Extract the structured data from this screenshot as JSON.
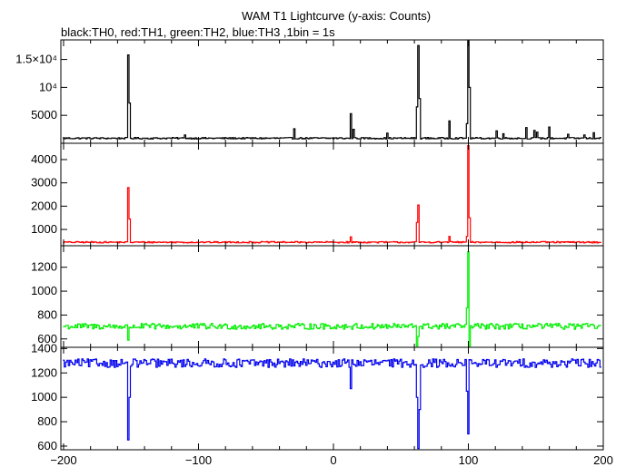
{
  "title": "WAM T1 Lightcurve (y-axis: Counts)",
  "subtitle": "black:TH0, red:TH1, green:TH2, blue:TH3 ,1bin = 1s",
  "chart_data": [
    {
      "type": "line",
      "series": [
        {
          "name": "TH0",
          "color": "#000000"
        }
      ],
      "xlim": [
        -202,
        200
      ],
      "ylim": [
        0,
        18500
      ],
      "yticks": [
        5000,
        10000,
        15000
      ],
      "ytick_labels": [
        "5000",
        "10⁴",
        "1.5×10⁴"
      ],
      "baseline": 900,
      "noise": 140,
      "peaks": [
        {
          "x": -152,
          "y": 15800,
          "w": 0.6
        },
        {
          "x": -151,
          "y": 7200,
          "w": 0.4
        },
        {
          "x": -150.5,
          "y": 3600,
          "w": 0.3
        },
        {
          "x": -110,
          "y": 1500,
          "w": 0.3
        },
        {
          "x": -29,
          "y": 2600,
          "w": 0.4
        },
        {
          "x": 13,
          "y": 5300,
          "w": 0.6
        },
        {
          "x": 15,
          "y": 2500,
          "w": 0.4
        },
        {
          "x": 40,
          "y": 1800,
          "w": 0.3
        },
        {
          "x": 62,
          "y": 6500,
          "w": 0.7
        },
        {
          "x": 63,
          "y": 17500,
          "w": 0.6
        },
        {
          "x": 64,
          "y": 8000,
          "w": 0.4
        },
        {
          "x": 86,
          "y": 4000,
          "w": 0.4
        },
        {
          "x": 99,
          "y": 3500,
          "w": 0.5
        },
        {
          "x": 100,
          "y": 18300,
          "w": 0.6
        },
        {
          "x": 101,
          "y": 10000,
          "w": 0.5
        },
        {
          "x": 121,
          "y": 2200,
          "w": 0.3
        },
        {
          "x": 126,
          "y": 1700,
          "w": 0.3
        },
        {
          "x": 143,
          "y": 2800,
          "w": 0.3
        },
        {
          "x": 149,
          "y": 2300,
          "w": 0.3
        },
        {
          "x": 151,
          "y": 2000,
          "w": 0.3
        },
        {
          "x": 160,
          "y": 2900,
          "w": 0.4
        },
        {
          "x": 174,
          "y": 1600,
          "w": 0.3
        },
        {
          "x": 186,
          "y": 1500,
          "w": 0.3
        },
        {
          "x": 193,
          "y": 1900,
          "w": 0.3
        }
      ]
    },
    {
      "type": "line",
      "series": [
        {
          "name": "TH1",
          "color": "#ff0000"
        }
      ],
      "xlim": [
        -202,
        200
      ],
      "ylim": [
        300,
        4700
      ],
      "yticks": [
        1000,
        2000,
        3000,
        4000
      ],
      "ytick_labels": [
        "1000",
        "2000",
        "3000",
        "4000"
      ],
      "baseline": 450,
      "noise": 30,
      "peaks": [
        {
          "x": -152,
          "y": 2800,
          "w": 0.6
        },
        {
          "x": -151,
          "y": 1450,
          "w": 0.4
        },
        {
          "x": 13,
          "y": 680,
          "w": 0.5
        },
        {
          "x": 62,
          "y": 1300,
          "w": 0.6
        },
        {
          "x": 63,
          "y": 2050,
          "w": 0.5
        },
        {
          "x": 86,
          "y": 700,
          "w": 0.4
        },
        {
          "x": 99,
          "y": 700,
          "w": 0.5
        },
        {
          "x": 100,
          "y": 4600,
          "w": 0.5
        },
        {
          "x": 101,
          "y": 1500,
          "w": 0.4
        }
      ]
    },
    {
      "type": "line",
      "series": [
        {
          "name": "TH2",
          "color": "#00ee00"
        }
      ],
      "xlim": [
        -202,
        200
      ],
      "ylim": [
        530,
        1380
      ],
      "yticks": [
        600,
        800,
        1000,
        1200
      ],
      "ytick_labels": [
        "600",
        "800",
        "1000",
        "1200"
      ],
      "baseline": 705,
      "noise": 25,
      "peaks": [
        {
          "x": -152,
          "y": 590,
          "w": 0.6
        },
        {
          "x": 62,
          "y": 540,
          "w": 0.6
        },
        {
          "x": 63,
          "y": 620,
          "w": 0.5
        },
        {
          "x": 100,
          "y": 1330,
          "w": 0.5
        },
        {
          "x": 101,
          "y": 540,
          "w": 0.4
        },
        {
          "x": 99,
          "y": 860,
          "w": 0.4
        }
      ]
    },
    {
      "type": "line",
      "series": [
        {
          "name": "TH3",
          "color": "#0000ee"
        }
      ],
      "xlim": [
        -202,
        200
      ],
      "xticks": [
        -200,
        -100,
        0,
        100,
        200
      ],
      "xtick_labels": [
        "−200",
        "−100",
        "0",
        "100",
        "200"
      ],
      "ylim": [
        570,
        1410
      ],
      "yticks": [
        600,
        800,
        1000,
        1200,
        1400
      ],
      "ytick_labels": [
        "600",
        "800",
        "1000",
        "1200",
        "1400"
      ],
      "baseline": 1280,
      "noise": 35,
      "peaks": [
        {
          "x": -152,
          "y": 650,
          "w": 0.6
        },
        {
          "x": -151,
          "y": 1000,
          "w": 0.5
        },
        {
          "x": 13,
          "y": 1070,
          "w": 0.5
        },
        {
          "x": 62,
          "y": 1000,
          "w": 0.7
        },
        {
          "x": 63,
          "y": 580,
          "w": 0.6
        },
        {
          "x": 64,
          "y": 900,
          "w": 0.5
        },
        {
          "x": 100,
          "y": 700,
          "w": 0.6
        },
        {
          "x": 99,
          "y": 1050,
          "w": 0.5
        }
      ]
    }
  ]
}
